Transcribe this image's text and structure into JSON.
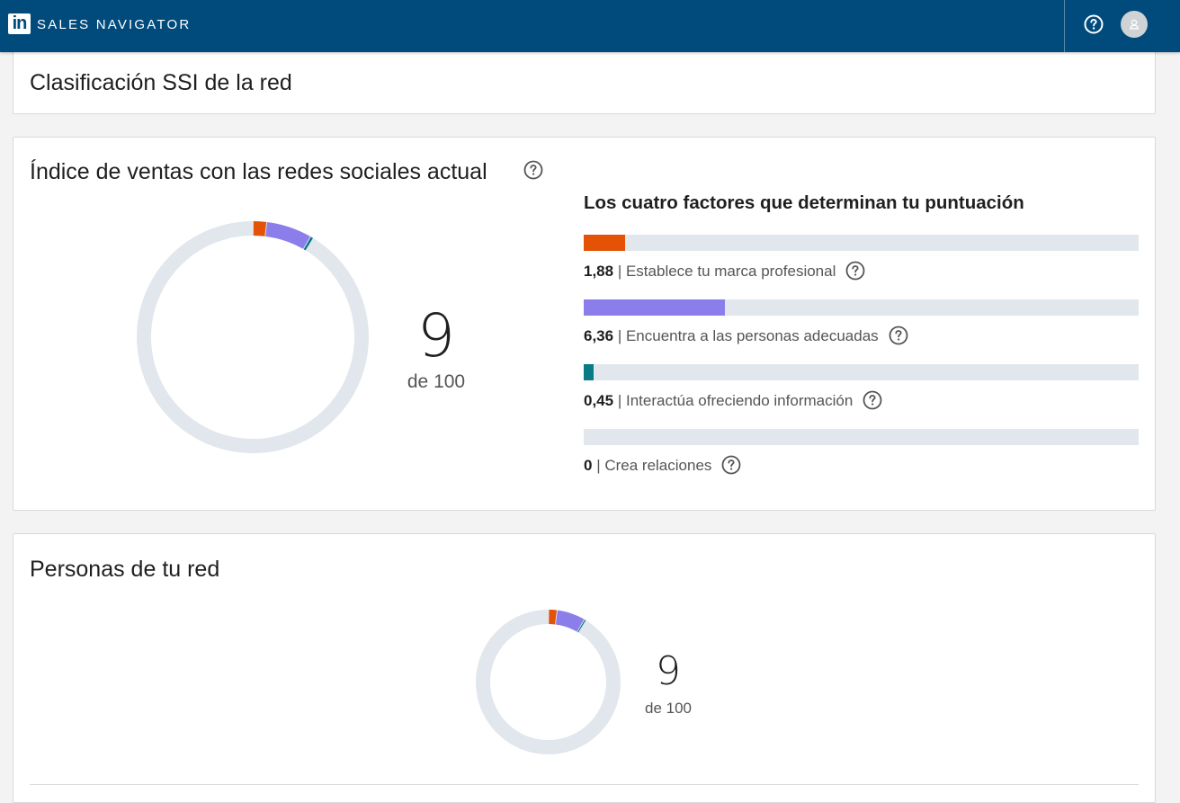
{
  "header": {
    "logo_text": "in",
    "brand": "SALES NAVIGATOR",
    "help_icon": "help-circle-icon",
    "avatar_icon": "user-avatar-icon",
    "color": "#004b7c"
  },
  "classification_card": {
    "title": "Clasificación SSI de la red"
  },
  "ssi_card": {
    "title": "Índice de ventas con las redes sociales actual",
    "score": "9",
    "score_suffix": "de 100",
    "factors_title": "Los cuatro factores que determinan tu puntuación",
    "factors": [
      {
        "value": "1,88",
        "label": "Establece tu marca profesional",
        "percent": 7.52,
        "color": "#e35205"
      },
      {
        "value": "6,36",
        "label": "Encuentra a las personas adecuadas",
        "percent": 25.44,
        "color": "#8c7eea"
      },
      {
        "value": "0,45",
        "label": "Interactúa ofreciendo información",
        "percent": 1.8,
        "color": "#0a7a87"
      },
      {
        "value": "0",
        "label": "Crea relaciones",
        "percent": 0,
        "color": "#0a66c2"
      }
    ]
  },
  "network_card": {
    "title": "Personas de tu red",
    "score": "9",
    "score_suffix": "de 100"
  },
  "colors": {
    "track": "#e2e7ed",
    "background": "#f3f3f3"
  }
}
